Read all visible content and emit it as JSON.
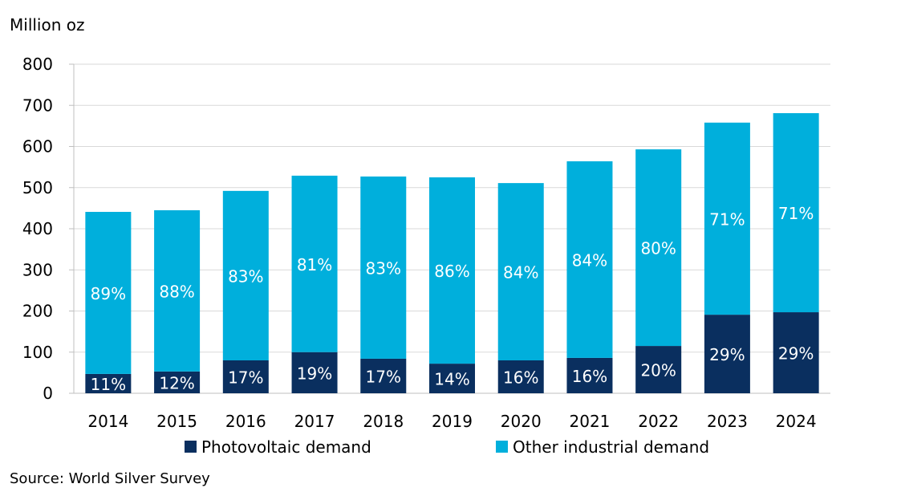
{
  "chart_data": {
    "type": "bar",
    "stacked": true,
    "ylabel": "Million oz",
    "ylim": [
      0,
      800
    ],
    "yticks": [
      0,
      100,
      200,
      300,
      400,
      500,
      600,
      700,
      800
    ],
    "grid": true,
    "legend_position": "bottom",
    "categories": [
      "2014",
      "2015",
      "2016",
      "2017",
      "2018",
      "2019",
      "2020",
      "2021",
      "2022",
      "2023",
      "2024"
    ],
    "series": [
      {
        "name": "Photovoltaic demand",
        "color": "#0a2f5f",
        "values": [
          47,
          53,
          80,
          100,
          84,
          72,
          80,
          86,
          115,
          191,
          197
        ],
        "labels": [
          "11%",
          "12%",
          "17%",
          "19%",
          "17%",
          "14%",
          "16%",
          "16%",
          "20%",
          "29%",
          "29%"
        ]
      },
      {
        "name": "Other industrial demand",
        "color": "#00afdc",
        "values": [
          394,
          392,
          412,
          429,
          443,
          453,
          431,
          478,
          478,
          467,
          484
        ],
        "labels": [
          "89%",
          "88%",
          "83%",
          "81%",
          "83%",
          "86%",
          "84%",
          "84%",
          "80%",
          "71%",
          "71%"
        ]
      }
    ],
    "source": "Source: World Silver Survey"
  }
}
